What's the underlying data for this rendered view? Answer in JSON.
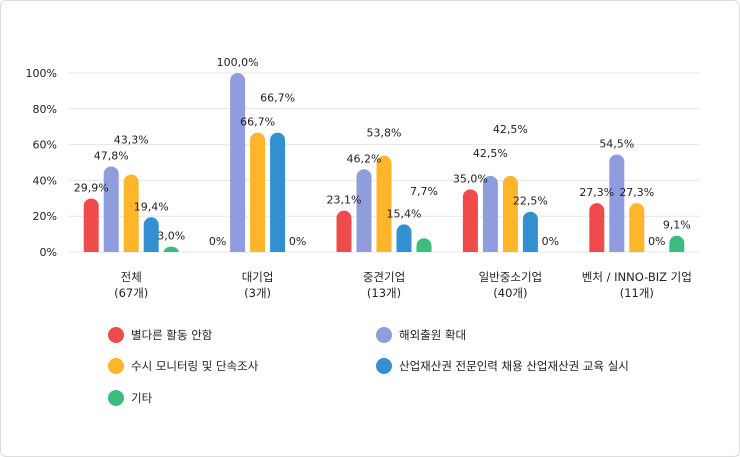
{
  "chart_data": {
    "type": "bar",
    "categories": [
      [
        "전체",
        "(67개)"
      ],
      [
        "대기업",
        "(3개)"
      ],
      [
        "중견기업",
        "(13개)"
      ],
      [
        "일반중소기업",
        "(40개)"
      ],
      [
        "벤처 / INNO-BIZ 기업",
        "(11개)"
      ]
    ],
    "ylim": [
      0,
      100
    ],
    "yticks": [
      0,
      20,
      40,
      60,
      80,
      100
    ],
    "ytick_labels": [
      "0%",
      "20%",
      "40%",
      "60%",
      "80%",
      "100%"
    ],
    "grid": true,
    "legend_placement": "bottom",
    "series": [
      {
        "name": "별다른 활동 안함",
        "color": "#ef4b4c",
        "values": [
          29.9,
          0,
          23.1,
          35.0,
          27.3
        ],
        "labels": [
          "29,9%",
          "0%",
          "23,1%",
          "35,0%",
          "27,3%"
        ]
      },
      {
        "name": "해외출원 확대",
        "color": "#8f9cdd",
        "values": [
          47.8,
          100.0,
          46.2,
          42.5,
          54.5
        ],
        "labels": [
          "47,8%",
          "100,0%",
          "46,2%",
          "42,5%",
          "54,5%"
        ]
      },
      {
        "name": "수시 모니터링 및 단속조사",
        "color": "#fdb52a",
        "values": [
          43.3,
          66.7,
          53.8,
          42.5,
          27.3
        ],
        "labels": [
          "43,3%",
          "66,7%",
          "53,8%",
          "42,5%",
          "27,3%"
        ]
      },
      {
        "name": "산업재산권 전문인력 채용 산업재산권 교육 실시",
        "color": "#3390d0",
        "values": [
          19.4,
          66.7,
          15.4,
          22.5,
          0
        ],
        "labels": [
          "19,4%",
          "66,7%",
          "15,4%",
          "22,5%",
          "0%"
        ]
      },
      {
        "name": "기타",
        "color": "#3dbd7d",
        "values": [
          3.0,
          0,
          7.7,
          0,
          9.1
        ],
        "labels": [
          "3,0%",
          "0%",
          "7,7%",
          "0%",
          "9,1%"
        ]
      }
    ]
  }
}
